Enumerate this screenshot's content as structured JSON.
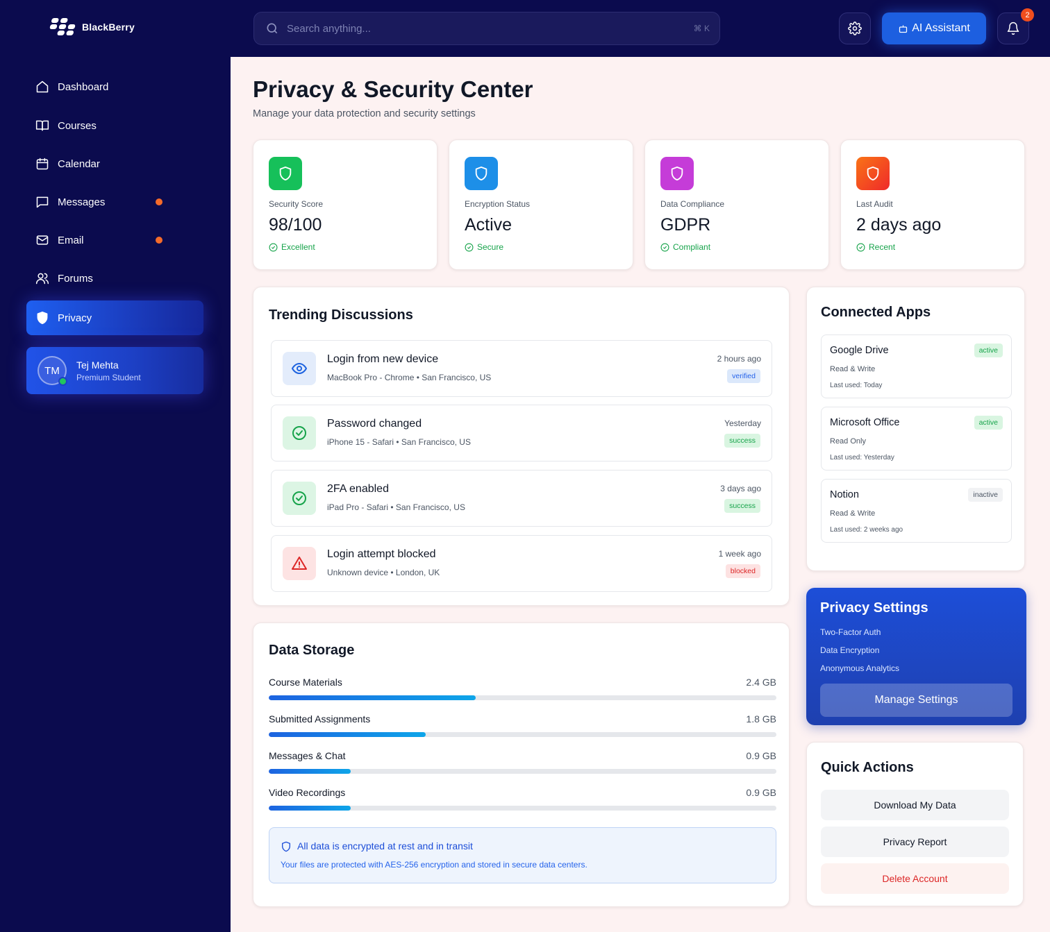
{
  "brand": {
    "name": "BlackBerry"
  },
  "sidebar": {
    "items": [
      {
        "label": "Dashboard",
        "icon": "home-icon"
      },
      {
        "label": "Courses",
        "icon": "book-icon"
      },
      {
        "label": "Calendar",
        "icon": "calendar-icon"
      },
      {
        "label": "Messages",
        "icon": "message-icon",
        "dot": true
      },
      {
        "label": "Email",
        "icon": "mail-icon",
        "dot": true
      },
      {
        "label": "Forums",
        "icon": "users-icon"
      },
      {
        "label": "Privacy",
        "icon": "shield-icon",
        "active": true
      }
    ],
    "user": {
      "initials": "TM",
      "name": "Tej Mehta",
      "role": "Premium Student"
    }
  },
  "topbar": {
    "search_placeholder": "Search anything...",
    "search_shortcut": "⌘ K",
    "ai_label": "AI Assistant",
    "notification_count": "2"
  },
  "page": {
    "title": "Privacy & Security Center",
    "subtitle": "Manage your data protection and security settings"
  },
  "stats": [
    {
      "label": "Security Score",
      "value": "98/100",
      "status": "Excellent",
      "color": "#16c05a"
    },
    {
      "label": "Encryption Status",
      "value": "Active",
      "status": "Secure",
      "color": "#1d8fe8"
    },
    {
      "label": "Data Compliance",
      "value": "GDPR",
      "status": "Compliant",
      "color": "#c53cd8"
    },
    {
      "label": "Last Audit",
      "value": "2 days ago",
      "status": "Recent",
      "color": "#f2402a"
    }
  ],
  "discussions": {
    "title": "Trending Discussions",
    "items": [
      {
        "title": "Login from new device",
        "meta": "MacBook Pro - Chrome • San Francisco, US",
        "time": "2 hours ago",
        "tag": "verified",
        "icon": "eye-icon"
      },
      {
        "title": "Password changed",
        "meta": "iPhone 15 - Safari • San Francisco, US",
        "time": "Yesterday",
        "tag": "success",
        "icon": "check-circle-icon"
      },
      {
        "title": "2FA enabled",
        "meta": "iPad Pro - Safari • San Francisco, US",
        "time": "3 days ago",
        "tag": "success",
        "icon": "check-circle-icon"
      },
      {
        "title": "Login attempt blocked",
        "meta": "Unknown device • London, UK",
        "time": "1 week ago",
        "tag": "blocked",
        "icon": "warning-icon"
      }
    ]
  },
  "storage": {
    "title": "Data Storage",
    "items": [
      {
        "label": "Course Materials",
        "value": "2.4 GB",
        "fraction": 0.408
      },
      {
        "label": "Submitted Assignments",
        "value": "1.8 GB",
        "fraction": 0.309
      },
      {
        "label": "Messages & Chat",
        "value": "0.9 GB",
        "fraction": 0.161
      },
      {
        "label": "Video Recordings",
        "value": "0.9 GB",
        "fraction": 0.161
      }
    ],
    "notice_title": "All data is encrypted at rest and in transit",
    "notice_text": "Your files are protected with AES-256 encryption and stored in secure data centers."
  },
  "apps": {
    "title": "Connected Apps",
    "items": [
      {
        "name": "Google Drive",
        "perm": "Read & Write",
        "used": "Last used: Today",
        "status": "active"
      },
      {
        "name": "Microsoft Office",
        "perm": "Read Only",
        "used": "Last used: Yesterday",
        "status": "active"
      },
      {
        "name": "Notion",
        "perm": "Read & Write",
        "used": "Last used: 2 weeks ago",
        "status": "inactive"
      }
    ]
  },
  "privacy_settings": {
    "title": "Privacy Settings",
    "options": [
      "Two-Factor Auth",
      "Data Encryption",
      "Anonymous Analytics"
    ],
    "button": "Manage Settings"
  },
  "quick_actions": {
    "title": "Quick Actions",
    "download": "Download My Data",
    "report": "Privacy Report",
    "delete": "Delete Account"
  }
}
